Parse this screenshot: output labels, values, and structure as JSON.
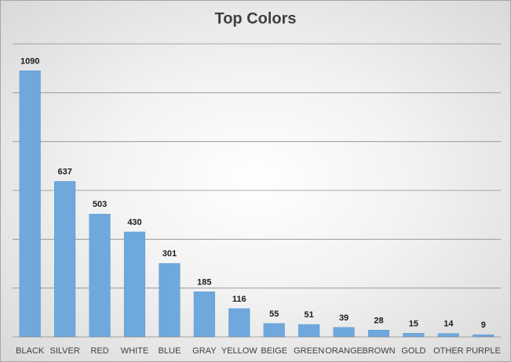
{
  "chart_data": {
    "type": "bar",
    "title": "Top Colors",
    "xlabel": "",
    "ylabel": "",
    "categories": [
      "BLACK",
      "SILVER",
      "RED",
      "WHITE",
      "BLUE",
      "GRAY",
      "YELLOW",
      "BEIGE",
      "GREEN",
      "ORANGE",
      "BROWN",
      "GOLD",
      "OTHER",
      "PURPLE"
    ],
    "values": [
      1090,
      637,
      503,
      430,
      301,
      185,
      116,
      55,
      51,
      39,
      28,
      15,
      14,
      9
    ],
    "ylim": [
      0,
      1200
    ],
    "y_gridlines": [
      200,
      400,
      600,
      800,
      1000,
      1200
    ],
    "y_tick_labels_shown": false,
    "data_labels": true,
    "grid": true,
    "legend": "none",
    "bar_color": "#6fa8dc"
  }
}
